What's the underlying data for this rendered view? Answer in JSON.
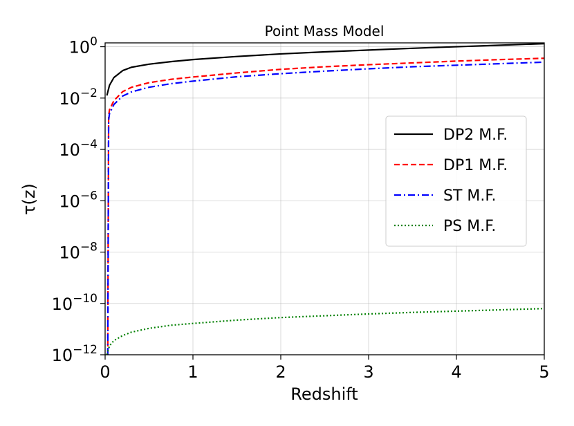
{
  "chart_data": {
    "type": "line",
    "title": "Point Mass Model",
    "xlabel": "Redshift",
    "ylabel": "τ(z)",
    "xlim": [
      0,
      5
    ],
    "ylim_log10": [
      -12,
      0.15
    ],
    "yscale": "log",
    "grid": true,
    "legend_position": "center-right",
    "x_ticks": [
      {
        "value": 0,
        "label": "0"
      },
      {
        "value": 1,
        "label": "1"
      },
      {
        "value": 2,
        "label": "2"
      },
      {
        "value": 3,
        "label": "3"
      },
      {
        "value": 4,
        "label": "4"
      },
      {
        "value": 5,
        "label": "5"
      }
    ],
    "y_ticks": [
      {
        "exp": 0,
        "base": "10",
        "sup": "0"
      },
      {
        "exp": -2,
        "base": "10",
        "sup": "−2"
      },
      {
        "exp": -4,
        "base": "10",
        "sup": "−4"
      },
      {
        "exp": -6,
        "base": "10",
        "sup": "−6"
      },
      {
        "exp": -8,
        "base": "10",
        "sup": "−8"
      },
      {
        "exp": -10,
        "base": "10",
        "sup": "−10"
      },
      {
        "exp": -12,
        "base": "10",
        "sup": "−12"
      }
    ],
    "series": [
      {
        "name": "DP2 M.F.",
        "color": "#000000",
        "style": "solid",
        "x": [
          0.02,
          0.05,
          0.1,
          0.2,
          0.3,
          0.5,
          0.75,
          1.0,
          1.5,
          2.0,
          2.5,
          3.0,
          3.5,
          4.0,
          4.5,
          5.0
        ],
        "log10": [
          -1.9,
          -1.5,
          -1.2,
          -0.93,
          -0.8,
          -0.68,
          -0.58,
          -0.5,
          -0.38,
          -0.28,
          -0.2,
          -0.13,
          -0.06,
          0.0,
          0.06,
          0.12
        ]
      },
      {
        "name": "DP1 M.F.",
        "color": "#ff0000",
        "style": "dashed",
        "x": [
          0.03,
          0.04,
          0.05,
          0.1,
          0.2,
          0.3,
          0.5,
          0.75,
          1.0,
          1.5,
          2.0,
          2.5,
          3.0,
          3.5,
          4.0,
          4.5,
          5.0
        ],
        "log10": [
          -12,
          -2.7,
          -2.45,
          -2.1,
          -1.75,
          -1.58,
          -1.4,
          -1.27,
          -1.18,
          -1.02,
          -0.88,
          -0.78,
          -0.7,
          -0.63,
          -0.56,
          -0.5,
          -0.45
        ]
      },
      {
        "name": "ST M.F.",
        "color": "#0000ff",
        "style": "dashdot",
        "x": [
          0.03,
          0.04,
          0.05,
          0.1,
          0.2,
          0.3,
          0.5,
          0.75,
          1.0,
          1.5,
          2.0,
          2.5,
          3.0,
          3.5,
          4.0,
          4.5,
          5.0
        ],
        "log10": [
          -12,
          -2.85,
          -2.6,
          -2.25,
          -1.92,
          -1.76,
          -1.58,
          -1.44,
          -1.34,
          -1.17,
          -1.05,
          -0.95,
          -0.86,
          -0.78,
          -0.72,
          -0.66,
          -0.6
        ]
      },
      {
        "name": "PS M.F.",
        "color": "#008000",
        "style": "dotted",
        "x": [
          0.02,
          0.05,
          0.1,
          0.2,
          0.3,
          0.5,
          0.75,
          1.0,
          1.5,
          2.0,
          2.5,
          3.0,
          3.5,
          4.0,
          4.5,
          5.0
        ],
        "log10": [
          -12,
          -11.65,
          -11.45,
          -11.25,
          -11.12,
          -10.97,
          -10.85,
          -10.78,
          -10.65,
          -10.55,
          -10.48,
          -10.41,
          -10.35,
          -10.3,
          -10.25,
          -10.2
        ]
      }
    ]
  }
}
